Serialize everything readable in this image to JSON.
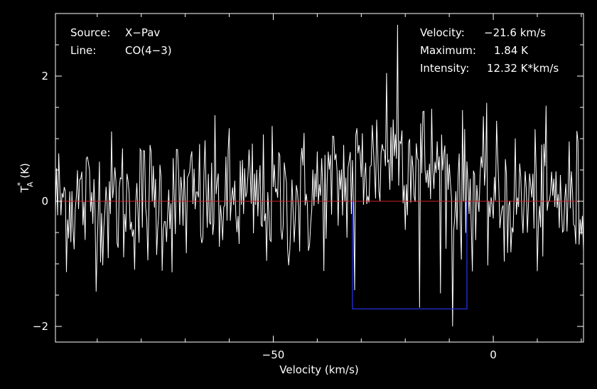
{
  "chart_data": {
    "type": "line",
    "xlabel": "Velocity (km/s)",
    "ylabel_main": "T",
    "ylabel_sup": "*",
    "ylabel_sub": "A",
    "ylabel_unit": " (K)",
    "xlim": [
      -99.5,
      20.5
    ],
    "ylim": [
      -2.25,
      3.0
    ],
    "xticks": [
      -50,
      0
    ],
    "yticks": [
      -2,
      0,
      2
    ],
    "baseline": 0,
    "window": {
      "x_start": -32,
      "x_end": -6,
      "depth": -1.72
    },
    "spectrum": {
      "x_start": -99.5,
      "x_step": 0.25,
      "noise_rms": 0.55,
      "line_center": -21.6,
      "line_peak": 0.75,
      "line_fwhm": 22,
      "spikes": [
        {
          "x": -21.7,
          "y": 2.82
        },
        {
          "x": -16.8,
          "y": -1.7
        },
        {
          "x": -9.3,
          "y": -2.0
        },
        {
          "x": -31.5,
          "y": -1.42
        },
        {
          "x": -24.2,
          "y": 2.05
        }
      ]
    },
    "info_left": [
      {
        "label": "Source:",
        "value": "X−Pav"
      },
      {
        "label": "Line:",
        "value": "CO(4−3)"
      }
    ],
    "info_right": [
      {
        "label": "Velocity:",
        "value": "−21.6 km/s"
      },
      {
        "label": "Maximum:",
        "value": "1.84 K"
      },
      {
        "label": "Intensity:",
        "value": "12.32 K*km/s"
      }
    ],
    "colors": {
      "background": "#000000",
      "spectrum": "#ffffff",
      "baseline": "#cc2222",
      "window": "#2233dd",
      "axes": "#ffffff"
    }
  }
}
